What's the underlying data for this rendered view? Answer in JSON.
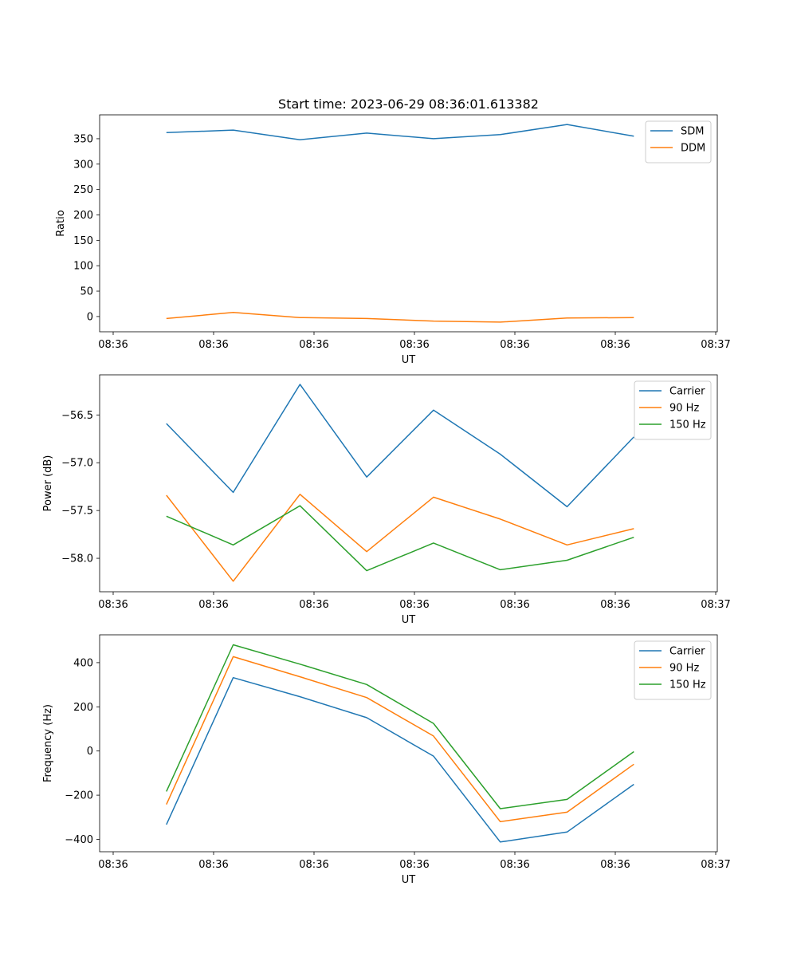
{
  "chart_data": [
    {
      "type": "line",
      "title": "Start time: 2023-06-29 08:36:01.613382",
      "xlabel": "UT",
      "ylabel": "Ratio",
      "x_tick_labels": [
        "08:36",
        "08:36",
        "08:36",
        "08:36",
        "08:36",
        "08:36",
        "08:37"
      ],
      "xlim": [
        -0.5,
        8.75
      ],
      "x": [
        0.5,
        1.5,
        2.5,
        3.5,
        4.5,
        5.5,
        6.5,
        7.5
      ],
      "ylim": [
        -30,
        397
      ],
      "yticks": [
        0,
        50,
        100,
        150,
        200,
        250,
        300,
        350
      ],
      "ytick_labels": [
        "0",
        "50",
        "100",
        "150",
        "200",
        "250",
        "300",
        "350"
      ],
      "legend_position": "upper right",
      "series": [
        {
          "name": "SDM",
          "color": "#1f77b4",
          "values": [
            362,
            367,
            348,
            361,
            350,
            358,
            378,
            355
          ]
        },
        {
          "name": "DDM",
          "color": "#ff7f0e",
          "values": [
            -4,
            8,
            -2,
            -4,
            -9,
            -11,
            -3,
            -2
          ]
        }
      ]
    },
    {
      "type": "line",
      "title": "",
      "xlabel": "UT",
      "ylabel": "Power (dB)",
      "x_tick_labels": [
        "08:36",
        "08:36",
        "08:36",
        "08:36",
        "08:36",
        "08:36",
        "08:37"
      ],
      "xlim": [
        -0.5,
        8.75
      ],
      "x": [
        0.5,
        1.5,
        2.5,
        3.5,
        4.5,
        5.5,
        6.5,
        7.5
      ],
      "ylim": [
        -58.35,
        -56.08
      ],
      "yticks": [
        -58.0,
        -57.5,
        -57.0,
        -56.5
      ],
      "ytick_labels": [
        "−58.0",
        "−57.5",
        "−57.0",
        "−56.5"
      ],
      "legend_position": "upper right",
      "series": [
        {
          "name": "Carrier",
          "color": "#1f77b4",
          "values": [
            -56.59,
            -57.31,
            -56.18,
            -57.15,
            -56.45,
            -56.91,
            -57.46,
            -56.73
          ]
        },
        {
          "name": "90 Hz",
          "color": "#ff7f0e",
          "values": [
            -57.34,
            -58.24,
            -57.33,
            -57.93,
            -57.36,
            -57.59,
            -57.86,
            -57.69
          ]
        },
        {
          "name": "150 Hz",
          "color": "#2ca02c",
          "values": [
            -57.56,
            -57.86,
            -57.45,
            -58.13,
            -57.84,
            -58.12,
            -58.02,
            -57.78
          ]
        }
      ]
    },
    {
      "type": "line",
      "title": "",
      "xlabel": "UT",
      "ylabel": "Frequency (Hz)",
      "x_tick_labels": [
        "08:36",
        "08:36",
        "08:36",
        "08:36",
        "08:36",
        "08:36",
        "08:37"
      ],
      "xlim": [
        -0.5,
        8.75
      ],
      "x": [
        0.5,
        1.5,
        2.5,
        3.5,
        4.5,
        5.5,
        6.5,
        7.5
      ],
      "ylim": [
        -456,
        526
      ],
      "yticks": [
        -400,
        -200,
        0,
        200,
        400
      ],
      "ytick_labels": [
        "−400",
        "−200",
        "0",
        "200",
        "400"
      ],
      "legend_position": "upper right",
      "series": [
        {
          "name": "Carrier",
          "color": "#1f77b4",
          "values": [
            -333,
            332,
            246,
            151,
            -23,
            -412,
            -367,
            -151
          ]
        },
        {
          "name": "90 Hz",
          "color": "#ff7f0e",
          "values": [
            -242,
            427,
            336,
            242,
            68,
            -320,
            -277,
            -60
          ]
        },
        {
          "name": "150 Hz",
          "color": "#2ca02c",
          "values": [
            -183,
            481,
            393,
            301,
            125,
            -261,
            -219,
            -3
          ]
        }
      ]
    }
  ]
}
